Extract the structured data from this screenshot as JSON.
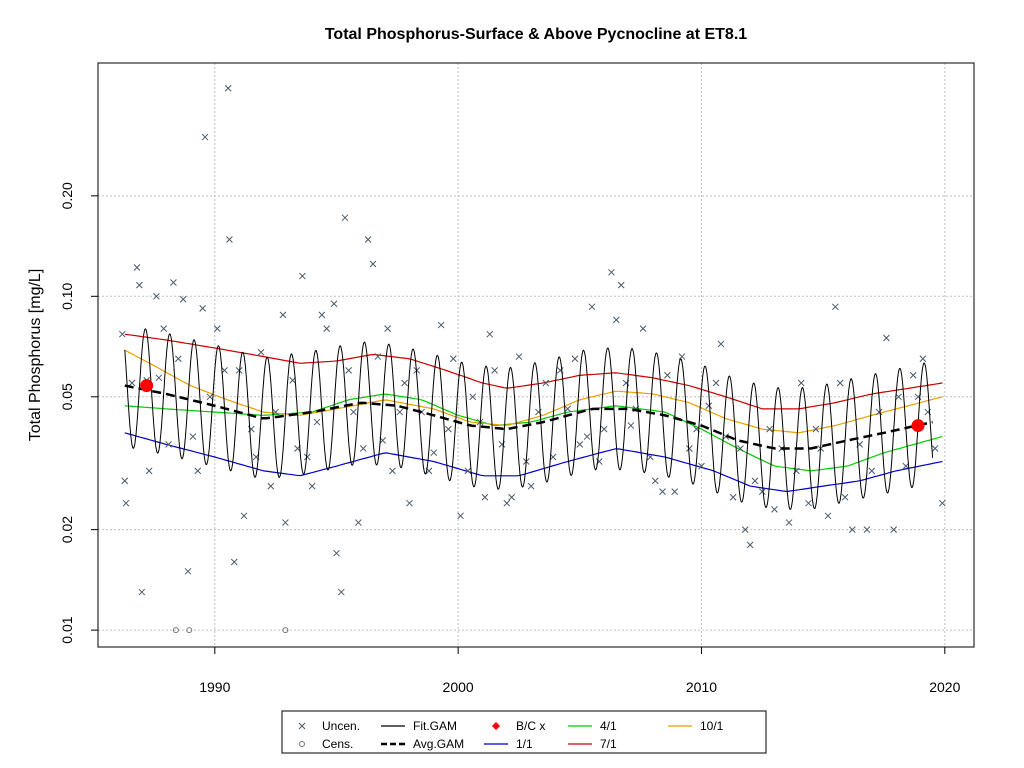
{
  "colors": {
    "uncensored": "#4a5a6a",
    "censored": "#777777",
    "fit_gam": "#000000",
    "avg_gam": "#000000",
    "bc_points": "#ff0000",
    "r_1_1": "#0000cc",
    "r_4_1": "#00cc00",
    "r_7_1": "#cc0000",
    "r_10_1": "#e6a000",
    "grid": "#c0c0c0"
  },
  "chart_data": {
    "type": "scatter",
    "title": "Total Phosphorus-Surface & Above Pycnocline at ET8.1",
    "ylabel": "Total Phosphorus [mg/L]",
    "xlabel": "",
    "log_y": true,
    "xlim": [
      1985.2,
      2021.2
    ],
    "ylim": [
      0.0089,
      0.5
    ],
    "grid": true,
    "x_ticks": [
      1990,
      2000,
      2010,
      2020
    ],
    "y_ticks": [
      {
        "value": 0.01,
        "label": "0.01"
      },
      {
        "value": 0.02,
        "label": "0.02"
      },
      {
        "value": 0.05,
        "label": "0.05"
      },
      {
        "value": 0.1,
        "label": "0.10"
      },
      {
        "value": 0.2,
        "label": "0.20"
      }
    ],
    "legend": [
      {
        "key": "uncen",
        "label": "Uncen."
      },
      {
        "key": "fit",
        "label": "Fit.GAM"
      },
      {
        "key": "bc",
        "label": "B/C x"
      },
      {
        "key": "r41",
        "label": "4/1"
      },
      {
        "key": "r101",
        "label": "10/1"
      },
      {
        "key": "cens",
        "label": "Cens."
      },
      {
        "key": "avg",
        "label": "Avg.GAM"
      },
      {
        "key": "r11",
        "label": "1/1"
      },
      {
        "key": "r71",
        "label": "7/1"
      }
    ],
    "legend_position": "bottom",
    "censored_points": [
      [
        1988.4,
        0.01
      ],
      [
        1988.95,
        0.01
      ],
      [
        1992.9,
        0.01
      ]
    ],
    "uncensored_points": [
      [
        1986.2,
        0.077
      ],
      [
        1986.3,
        0.028
      ],
      [
        1986.35,
        0.024
      ],
      [
        1986.6,
        0.055
      ],
      [
        1986.8,
        0.122
      ],
      [
        1986.9,
        0.108
      ],
      [
        1987.0,
        0.013
      ],
      [
        1987.2,
        0.056
      ],
      [
        1987.3,
        0.03
      ],
      [
        1987.6,
        0.1
      ],
      [
        1987.7,
        0.057
      ],
      [
        1987.9,
        0.08
      ],
      [
        1988.1,
        0.036
      ],
      [
        1988.3,
        0.11
      ],
      [
        1988.5,
        0.065
      ],
      [
        1988.7,
        0.098
      ],
      [
        1988.9,
        0.015
      ],
      [
        1989.1,
        0.038
      ],
      [
        1989.3,
        0.03
      ],
      [
        1989.5,
        0.092
      ],
      [
        1989.6,
        0.3
      ],
      [
        1989.8,
        0.05
      ],
      [
        1990.1,
        0.08
      ],
      [
        1990.4,
        0.06
      ],
      [
        1990.55,
        0.42
      ],
      [
        1990.6,
        0.148
      ],
      [
        1990.8,
        0.016
      ],
      [
        1991.0,
        0.06
      ],
      [
        1991.2,
        0.022
      ],
      [
        1991.5,
        0.04
      ],
      [
        1991.7,
        0.033
      ],
      [
        1991.9,
        0.068
      ],
      [
        1992.3,
        0.027
      ],
      [
        1992.5,
        0.045
      ],
      [
        1992.8,
        0.088
      ],
      [
        1992.9,
        0.021
      ],
      [
        1993.2,
        0.056
      ],
      [
        1993.4,
        0.035
      ],
      [
        1993.6,
        0.115
      ],
      [
        1993.8,
        0.033
      ],
      [
        1994.0,
        0.027
      ],
      [
        1994.2,
        0.042
      ],
      [
        1994.4,
        0.088
      ],
      [
        1994.6,
        0.08
      ],
      [
        1994.9,
        0.095
      ],
      [
        1995.0,
        0.017
      ],
      [
        1995.2,
        0.013
      ],
      [
        1995.35,
        0.172
      ],
      [
        1995.5,
        0.06
      ],
      [
        1995.7,
        0.045
      ],
      [
        1995.9,
        0.021
      ],
      [
        1996.1,
        0.035
      ],
      [
        1996.3,
        0.148
      ],
      [
        1996.5,
        0.125
      ],
      [
        1996.7,
        0.066
      ],
      [
        1996.9,
        0.037
      ],
      [
        1997.1,
        0.08
      ],
      [
        1997.3,
        0.03
      ],
      [
        1997.6,
        0.045
      ],
      [
        1997.8,
        0.055
      ],
      [
        1998.0,
        0.024
      ],
      [
        1998.3,
        0.06
      ],
      [
        1998.5,
        0.045
      ],
      [
        1998.8,
        0.03
      ],
      [
        1999.0,
        0.034
      ],
      [
        1999.3,
        0.082
      ],
      [
        1999.6,
        0.04
      ],
      [
        1999.8,
        0.065
      ],
      [
        2000.1,
        0.022
      ],
      [
        2000.4,
        0.03
      ],
      [
        2000.6,
        0.05
      ],
      [
        2000.9,
        0.042
      ],
      [
        2001.1,
        0.025
      ],
      [
        2001.3,
        0.077
      ],
      [
        2001.5,
        0.06
      ],
      [
        2001.8,
        0.036
      ],
      [
        2002.0,
        0.024
      ],
      [
        2002.2,
        0.025
      ],
      [
        2002.5,
        0.066
      ],
      [
        2002.8,
        0.032
      ],
      [
        2003.0,
        0.027
      ],
      [
        2003.3,
        0.045
      ],
      [
        2003.6,
        0.055
      ],
      [
        2003.9,
        0.033
      ],
      [
        2004.2,
        0.06
      ],
      [
        2004.5,
        0.046
      ],
      [
        2004.8,
        0.065
      ],
      [
        2005.0,
        0.036
      ],
      [
        2005.3,
        0.038
      ],
      [
        2005.5,
        0.093
      ],
      [
        2005.8,
        0.032
      ],
      [
        2006.0,
        0.04
      ],
      [
        2006.3,
        0.118
      ],
      [
        2006.5,
        0.085
      ],
      [
        2006.7,
        0.108
      ],
      [
        2006.9,
        0.055
      ],
      [
        2007.1,
        0.041
      ],
      [
        2007.3,
        0.046
      ],
      [
        2007.6,
        0.08
      ],
      [
        2007.9,
        0.033
      ],
      [
        2008.1,
        0.028
      ],
      [
        2008.4,
        0.026
      ],
      [
        2008.6,
        0.058
      ],
      [
        2008.9,
        0.026
      ],
      [
        2009.2,
        0.066
      ],
      [
        2009.5,
        0.035
      ],
      [
        2009.8,
        0.04
      ],
      [
        2010.0,
        0.031
      ],
      [
        2010.3,
        0.047
      ],
      [
        2010.6,
        0.055
      ],
      [
        2010.8,
        0.072
      ],
      [
        2011.0,
        0.038
      ],
      [
        2011.3,
        0.025
      ],
      [
        2011.6,
        0.035
      ],
      [
        2011.8,
        0.02
      ],
      [
        2012.0,
        0.018
      ],
      [
        2012.2,
        0.028
      ],
      [
        2012.5,
        0.026
      ],
      [
        2012.8,
        0.04
      ],
      [
        2013.0,
        0.023
      ],
      [
        2013.3,
        0.035
      ],
      [
        2013.6,
        0.021
      ],
      [
        2013.9,
        0.03
      ],
      [
        2014.1,
        0.055
      ],
      [
        2014.4,
        0.024
      ],
      [
        2014.7,
        0.04
      ],
      [
        2014.9,
        0.035
      ],
      [
        2015.2,
        0.022
      ],
      [
        2015.5,
        0.093
      ],
      [
        2015.7,
        0.055
      ],
      [
        2015.9,
        0.025
      ],
      [
        2016.2,
        0.02
      ],
      [
        2016.5,
        0.036
      ],
      [
        2016.8,
        0.02
      ],
      [
        2017.0,
        0.03
      ],
      [
        2017.3,
        0.045
      ],
      [
        2017.6,
        0.075
      ],
      [
        2017.9,
        0.02
      ],
      [
        2018.1,
        0.05
      ],
      [
        2018.4,
        0.031
      ],
      [
        2018.7,
        0.058
      ],
      [
        2018.9,
        0.05
      ],
      [
        2019.1,
        0.065
      ],
      [
        2019.3,
        0.045
      ],
      [
        2019.6,
        0.035
      ],
      [
        2019.9,
        0.024
      ]
    ],
    "bc_points": [
      [
        1987.2,
        0.054
      ],
      [
        2018.9,
        0.041
      ]
    ],
    "gam": {
      "avg": [
        [
          1986.3,
          0.054
        ],
        [
          1988.0,
          0.051
        ],
        [
          1990.0,
          0.047
        ],
        [
          1992.0,
          0.043
        ],
        [
          1994.0,
          0.045
        ],
        [
          1996.0,
          0.048
        ],
        [
          1997.5,
          0.047
        ],
        [
          1999.0,
          0.044
        ],
        [
          2000.5,
          0.041
        ],
        [
          2002.0,
          0.04
        ],
        [
          2003.5,
          0.042
        ],
        [
          2005.5,
          0.046
        ],
        [
          2007.0,
          0.046
        ],
        [
          2008.5,
          0.044
        ],
        [
          2010.0,
          0.041
        ],
        [
          2011.5,
          0.037
        ],
        [
          2013.0,
          0.035
        ],
        [
          2014.5,
          0.035
        ],
        [
          2016.0,
          0.037
        ],
        [
          2017.5,
          0.039
        ],
        [
          2019.5,
          0.042
        ]
      ],
      "fit_amplitude": 0.42,
      "fit_period": 1.0,
      "fit_peak_phase": 0.15
    },
    "ratios": {
      "r_1_1": [
        [
          1986.3,
          0.039
        ],
        [
          1988.0,
          0.036
        ],
        [
          1990.0,
          0.033
        ],
        [
          1992.0,
          0.03
        ],
        [
          1993.5,
          0.029
        ],
        [
          1995.0,
          0.031
        ],
        [
          1997.0,
          0.034
        ],
        [
          1999.0,
          0.032
        ],
        [
          2001.0,
          0.029
        ],
        [
          2002.5,
          0.029
        ],
        [
          2004.5,
          0.032
        ],
        [
          2006.5,
          0.035
        ],
        [
          2008.5,
          0.033
        ],
        [
          2010.5,
          0.03
        ],
        [
          2012.0,
          0.027
        ],
        [
          2013.5,
          0.026
        ],
        [
          2015.0,
          0.027
        ],
        [
          2016.5,
          0.028
        ],
        [
          2018.0,
          0.03
        ],
        [
          2019.9,
          0.032
        ]
      ],
      "r_4_1": [
        [
          1986.3,
          0.047
        ],
        [
          1988.0,
          0.046
        ],
        [
          1990.0,
          0.045
        ],
        [
          1992.0,
          0.044
        ],
        [
          1994.0,
          0.045
        ],
        [
          1995.5,
          0.049
        ],
        [
          1997.0,
          0.051
        ],
        [
          1998.5,
          0.049
        ],
        [
          2000.0,
          0.044
        ],
        [
          2001.5,
          0.041
        ],
        [
          2003.0,
          0.042
        ],
        [
          2004.5,
          0.045
        ],
        [
          2006.5,
          0.047
        ],
        [
          2008.5,
          0.045
        ],
        [
          2010.0,
          0.04
        ],
        [
          2011.5,
          0.035
        ],
        [
          2013.0,
          0.031
        ],
        [
          2014.5,
          0.03
        ],
        [
          2016.0,
          0.031
        ],
        [
          2017.5,
          0.034
        ],
        [
          2019.9,
          0.038
        ]
      ],
      "r_7_1": [
        [
          1986.3,
          0.077
        ],
        [
          1988.0,
          0.074
        ],
        [
          1990.0,
          0.07
        ],
        [
          1992.0,
          0.066
        ],
        [
          1993.5,
          0.063
        ],
        [
          1995.0,
          0.064
        ],
        [
          1996.5,
          0.067
        ],
        [
          1998.0,
          0.065
        ],
        [
          1999.5,
          0.06
        ],
        [
          2001.0,
          0.055
        ],
        [
          2002.0,
          0.053
        ],
        [
          2003.5,
          0.055
        ],
        [
          2005.0,
          0.058
        ],
        [
          2006.5,
          0.059
        ],
        [
          2008.0,
          0.057
        ],
        [
          2009.5,
          0.054
        ],
        [
          2011.0,
          0.05
        ],
        [
          2012.5,
          0.046
        ],
        [
          2014.0,
          0.046
        ],
        [
          2015.5,
          0.048
        ],
        [
          2017.0,
          0.051
        ],
        [
          2018.5,
          0.053
        ],
        [
          2019.9,
          0.055
        ]
      ],
      "r_10_1": [
        [
          1986.3,
          0.069
        ],
        [
          1987.5,
          0.062
        ],
        [
          1989.0,
          0.054
        ],
        [
          1990.5,
          0.049
        ],
        [
          1992.0,
          0.045
        ],
        [
          1993.5,
          0.044
        ],
        [
          1995.0,
          0.046
        ],
        [
          1997.0,
          0.049
        ],
        [
          1999.0,
          0.046
        ],
        [
          2000.5,
          0.042
        ],
        [
          2002.0,
          0.041
        ],
        [
          2003.5,
          0.044
        ],
        [
          2005.0,
          0.049
        ],
        [
          2006.5,
          0.052
        ],
        [
          2008.0,
          0.051
        ],
        [
          2009.5,
          0.048
        ],
        [
          2011.0,
          0.043
        ],
        [
          2012.5,
          0.04
        ],
        [
          2014.0,
          0.039
        ],
        [
          2015.5,
          0.041
        ],
        [
          2017.0,
          0.044
        ],
        [
          2018.5,
          0.047
        ],
        [
          2019.9,
          0.05
        ]
      ]
    }
  }
}
